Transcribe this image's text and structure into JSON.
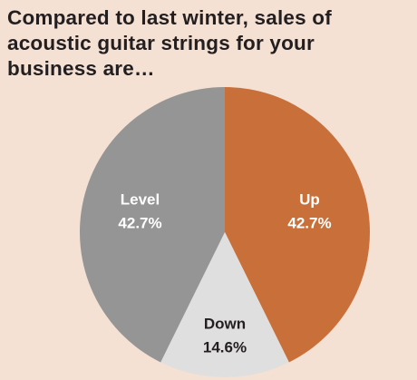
{
  "chart_data": {
    "type": "pie",
    "title": "Compared to last winter, sales of acoustic guitar strings for your business are…",
    "categories": [
      "Up",
      "Down",
      "Level"
    ],
    "values": [
      42.7,
      14.6,
      42.7
    ],
    "value_labels": [
      "42.7%",
      "14.6%",
      "42.7%"
    ],
    "colors": [
      "#c9703a",
      "#dfdfe0",
      "#959595"
    ]
  }
}
